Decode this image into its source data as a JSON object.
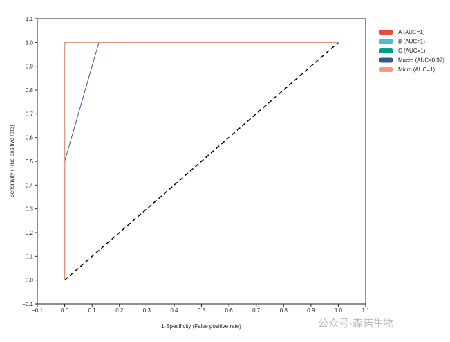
{
  "chart_data": {
    "type": "line",
    "xlabel": "1-Specificity (False positive rate)",
    "ylabel": "Sensitivity (True positive rate)",
    "xlim": [
      -0.1,
      1.1
    ],
    "ylim": [
      -0.1,
      1.1
    ],
    "xticks": [
      "-0.1",
      "0.0",
      "0.1",
      "0.2",
      "0.3",
      "0.4",
      "0.5",
      "0.6",
      "0.7",
      "0.8",
      "0.9",
      "1.0",
      "1.1"
    ],
    "yticks": [
      "-0.1",
      "0.0",
      "0.1",
      "0.2",
      "0.3",
      "0.4",
      "0.5",
      "0.6",
      "0.7",
      "0.8",
      "0.9",
      "1.0",
      "1.1"
    ],
    "grid": false,
    "legend_position": "right",
    "series": [
      {
        "name": "A (AUC=1)",
        "color": "#e64b35",
        "x": [
          0,
          0,
          1
        ],
        "y": [
          0,
          1,
          1
        ]
      },
      {
        "name": "B (AUC=1)",
        "color": "#4dbbd5",
        "x": [
          0,
          0,
          1
        ],
        "y": [
          0,
          1,
          1
        ]
      },
      {
        "name": "C (AUC=1)",
        "color": "#00a087",
        "x": [
          0,
          0,
          1
        ],
        "y": [
          0,
          1,
          1
        ]
      },
      {
        "name": "Macro (AUC=0.97)",
        "color": "#3c5488",
        "x": [
          0,
          0,
          0.125,
          1
        ],
        "y": [
          0,
          0.5,
          1,
          1
        ]
      },
      {
        "name": "Micro (AUC=1)",
        "color": "#f39b7f",
        "x": [
          0,
          0,
          1
        ],
        "y": [
          0,
          1,
          1
        ]
      }
    ],
    "reference_line": {
      "x": [
        0,
        1
      ],
      "y": [
        0,
        1
      ],
      "style": "dashed",
      "color": "#000000"
    }
  },
  "watermark": "公众号·森诺生物"
}
